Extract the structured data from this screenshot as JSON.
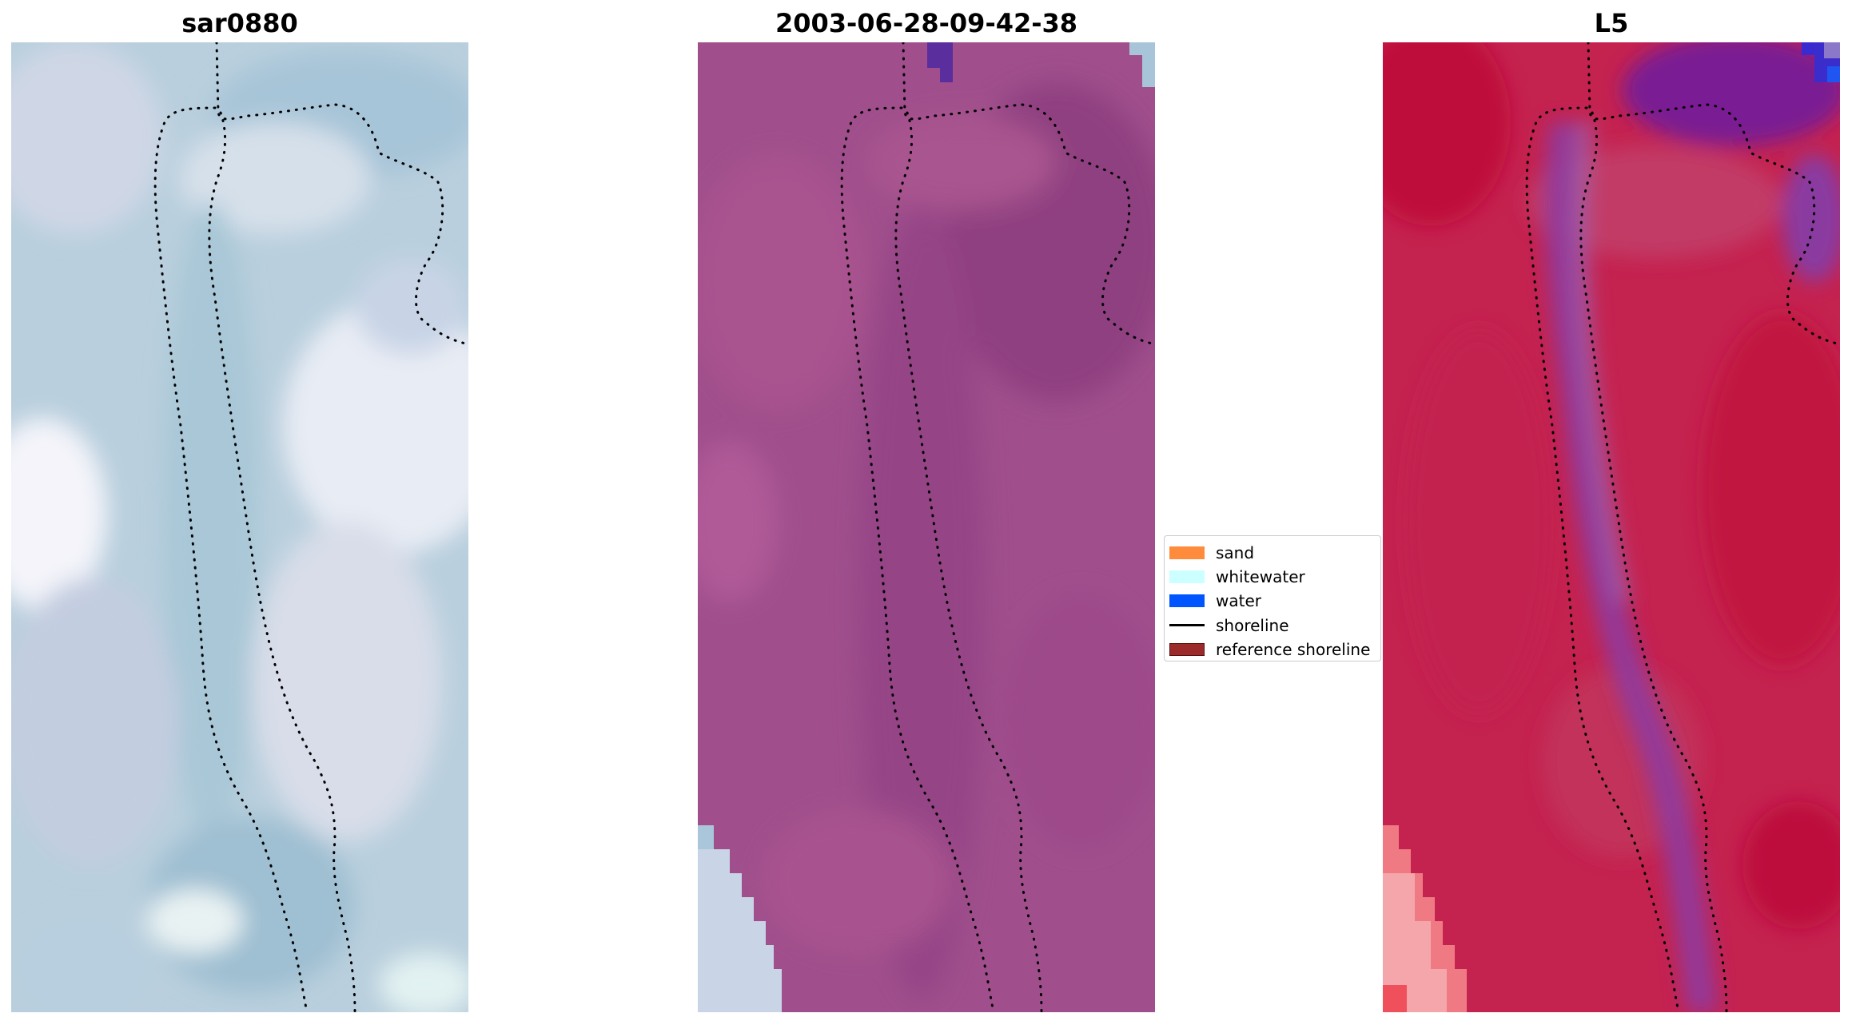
{
  "panels": [
    {
      "title": "sar0880",
      "image": "RGB satellite image"
    },
    {
      "title": "2003-06-28-09-42-38",
      "image": "classified image overlay"
    },
    {
      "title": "L5",
      "image": "false-colour image"
    }
  ],
  "legend": {
    "items": [
      {
        "label": "sand",
        "color": "#ff8c3c",
        "kind": "patch"
      },
      {
        "label": "whitewater",
        "color": "#ccffff",
        "kind": "patch"
      },
      {
        "label": "water",
        "color": "#0055ff",
        "kind": "patch"
      },
      {
        "label": "shoreline",
        "color": "#000000",
        "kind": "line"
      },
      {
        "label": "reference shoreline",
        "color": "#9b2b2b",
        "kind": "patch"
      }
    ]
  },
  "colors": {
    "panel1_base": "#b7cedd",
    "panel2_base": "#a04d8c",
    "panel3_base": "#c4214f",
    "shoreline": "#000000"
  }
}
